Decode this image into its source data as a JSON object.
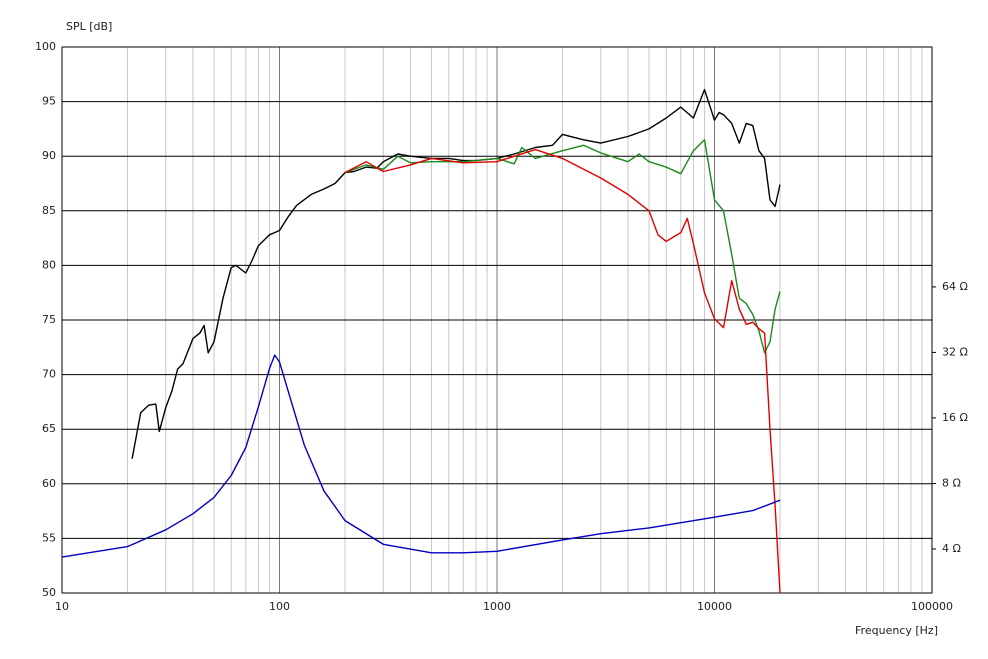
{
  "chart_data": {
    "type": "line",
    "ylabel": "SPL [dB]",
    "xlabel": "Frequency [Hz]",
    "xscale": "log",
    "y2scale": "log",
    "grid": true,
    "xlim": [
      10,
      100000
    ],
    "xticks": [
      10,
      100,
      1000,
      10000,
      100000
    ],
    "xminorticks": [
      20,
      30,
      40,
      50,
      60,
      70,
      80,
      90,
      200,
      300,
      400,
      500,
      600,
      700,
      800,
      900,
      2000,
      3000,
      4000,
      5000,
      6000,
      7000,
      8000,
      9000,
      20000,
      30000,
      40000,
      50000,
      60000,
      70000,
      80000,
      90000
    ],
    "ylim": [
      50,
      100
    ],
    "yticks": [
      50,
      55,
      60,
      65,
      70,
      75,
      80,
      85,
      90,
      95,
      100
    ],
    "y2lim": [
      2.51,
      810
    ],
    "y2ticks": [
      {
        "value": 4,
        "label": "4 Ω"
      },
      {
        "value": 8,
        "label": "8 Ω"
      },
      {
        "value": 16,
        "label": "16 Ω"
      },
      {
        "value": 32,
        "label": "32 Ω"
      },
      {
        "value": 64,
        "label": "64 Ω"
      }
    ],
    "series": [
      {
        "color": "#000000",
        "x": [
          21,
          23,
          25,
          27,
          28,
          30,
          32,
          34,
          36,
          40,
          43,
          45,
          47,
          50,
          55,
          60,
          63,
          70,
          75,
          80,
          90,
          100,
          110,
          120,
          140,
          160,
          180,
          200,
          220,
          250,
          280,
          300,
          350,
          400,
          500,
          600,
          700,
          800,
          1000,
          1200,
          1500,
          1800,
          2000,
          2500,
          3000,
          4000,
          5000,
          6000,
          7000,
          8000,
          9000,
          10000,
          10500,
          11000,
          12000,
          13000,
          14000,
          15000,
          16000,
          17000,
          18000,
          19000,
          20000
        ],
        "values": [
          62.3,
          66.5,
          67.2,
          67.3,
          64.8,
          67,
          68.5,
          70.5,
          71,
          73.3,
          73.8,
          74.5,
          72,
          73,
          77,
          79.8,
          80,
          79.3,
          80.5,
          81.8,
          82.8,
          83.2,
          84.5,
          85.5,
          86.5,
          87,
          87.5,
          88.5,
          88.6,
          89,
          88.9,
          89.5,
          90.2,
          90,
          89.8,
          89.8,
          89.6,
          89.6,
          89.8,
          90.2,
          90.8,
          91,
          92,
          91.5,
          91.2,
          91.8,
          92.5,
          93.5,
          94.5,
          93.5,
          96.1,
          93.3,
          94,
          93.8,
          93,
          91.2,
          93,
          92.8,
          90.5,
          89.8,
          86,
          85.4,
          87.4
        ]
      },
      {
        "color": "#1a8a1a",
        "x": [
          200,
          250,
          300,
          350,
          400,
          500,
          700,
          1000,
          1200,
          1300,
          1500,
          2000,
          2500,
          3000,
          4000,
          4500,
          5000,
          6000,
          7000,
          8000,
          9000,
          10000,
          11000,
          12000,
          13000,
          14000,
          15000,
          16000,
          17000,
          18000,
          19000,
          20000
        ],
        "values": [
          88.5,
          89.2,
          88.8,
          90,
          89.4,
          89.5,
          89.5,
          89.8,
          89.3,
          90.8,
          89.8,
          90.5,
          91,
          90.3,
          89.5,
          90.2,
          89.5,
          89,
          88.4,
          90.5,
          91.5,
          86,
          85,
          81,
          77,
          76.5,
          75.5,
          74,
          72,
          73,
          76,
          77.6
        ]
      },
      {
        "color": "#e00000",
        "x": [
          200,
          250,
          300,
          400,
          500,
          700,
          1000,
          1500,
          2000,
          2500,
          3000,
          4000,
          5000,
          5500,
          6000,
          7000,
          7500,
          8000,
          9000,
          10000,
          11000,
          12000,
          13000,
          14000,
          15000,
          16000,
          17000,
          18000,
          19000,
          20000
        ],
        "values": [
          88.5,
          89.5,
          88.6,
          89.2,
          89.8,
          89.4,
          89.5,
          90.6,
          89.8,
          88.8,
          88,
          86.5,
          85,
          82.8,
          82.2,
          83,
          84.3,
          82,
          77.5,
          75.1,
          74.3,
          78.6,
          76,
          74.6,
          74.8,
          74.2,
          73.8,
          65,
          58,
          50
        ]
      },
      {
        "color": "#0000c0",
        "axis": "y2",
        "x": [
          10,
          20,
          30,
          40,
          50,
          60,
          70,
          80,
          90,
          95,
          100,
          110,
          130,
          160,
          200,
          300,
          500,
          700,
          1000,
          2000,
          3000,
          5000,
          10000,
          15000,
          20000
        ],
        "values": [
          3.67,
          4.1,
          4.9,
          5.8,
          6.9,
          8.7,
          11.7,
          18,
          27,
          31.1,
          28.9,
          21,
          12,
          7.4,
          5.4,
          4.2,
          3.84,
          3.84,
          3.9,
          4.4,
          4.7,
          5,
          5.6,
          6,
          6.7
        ]
      }
    ]
  }
}
